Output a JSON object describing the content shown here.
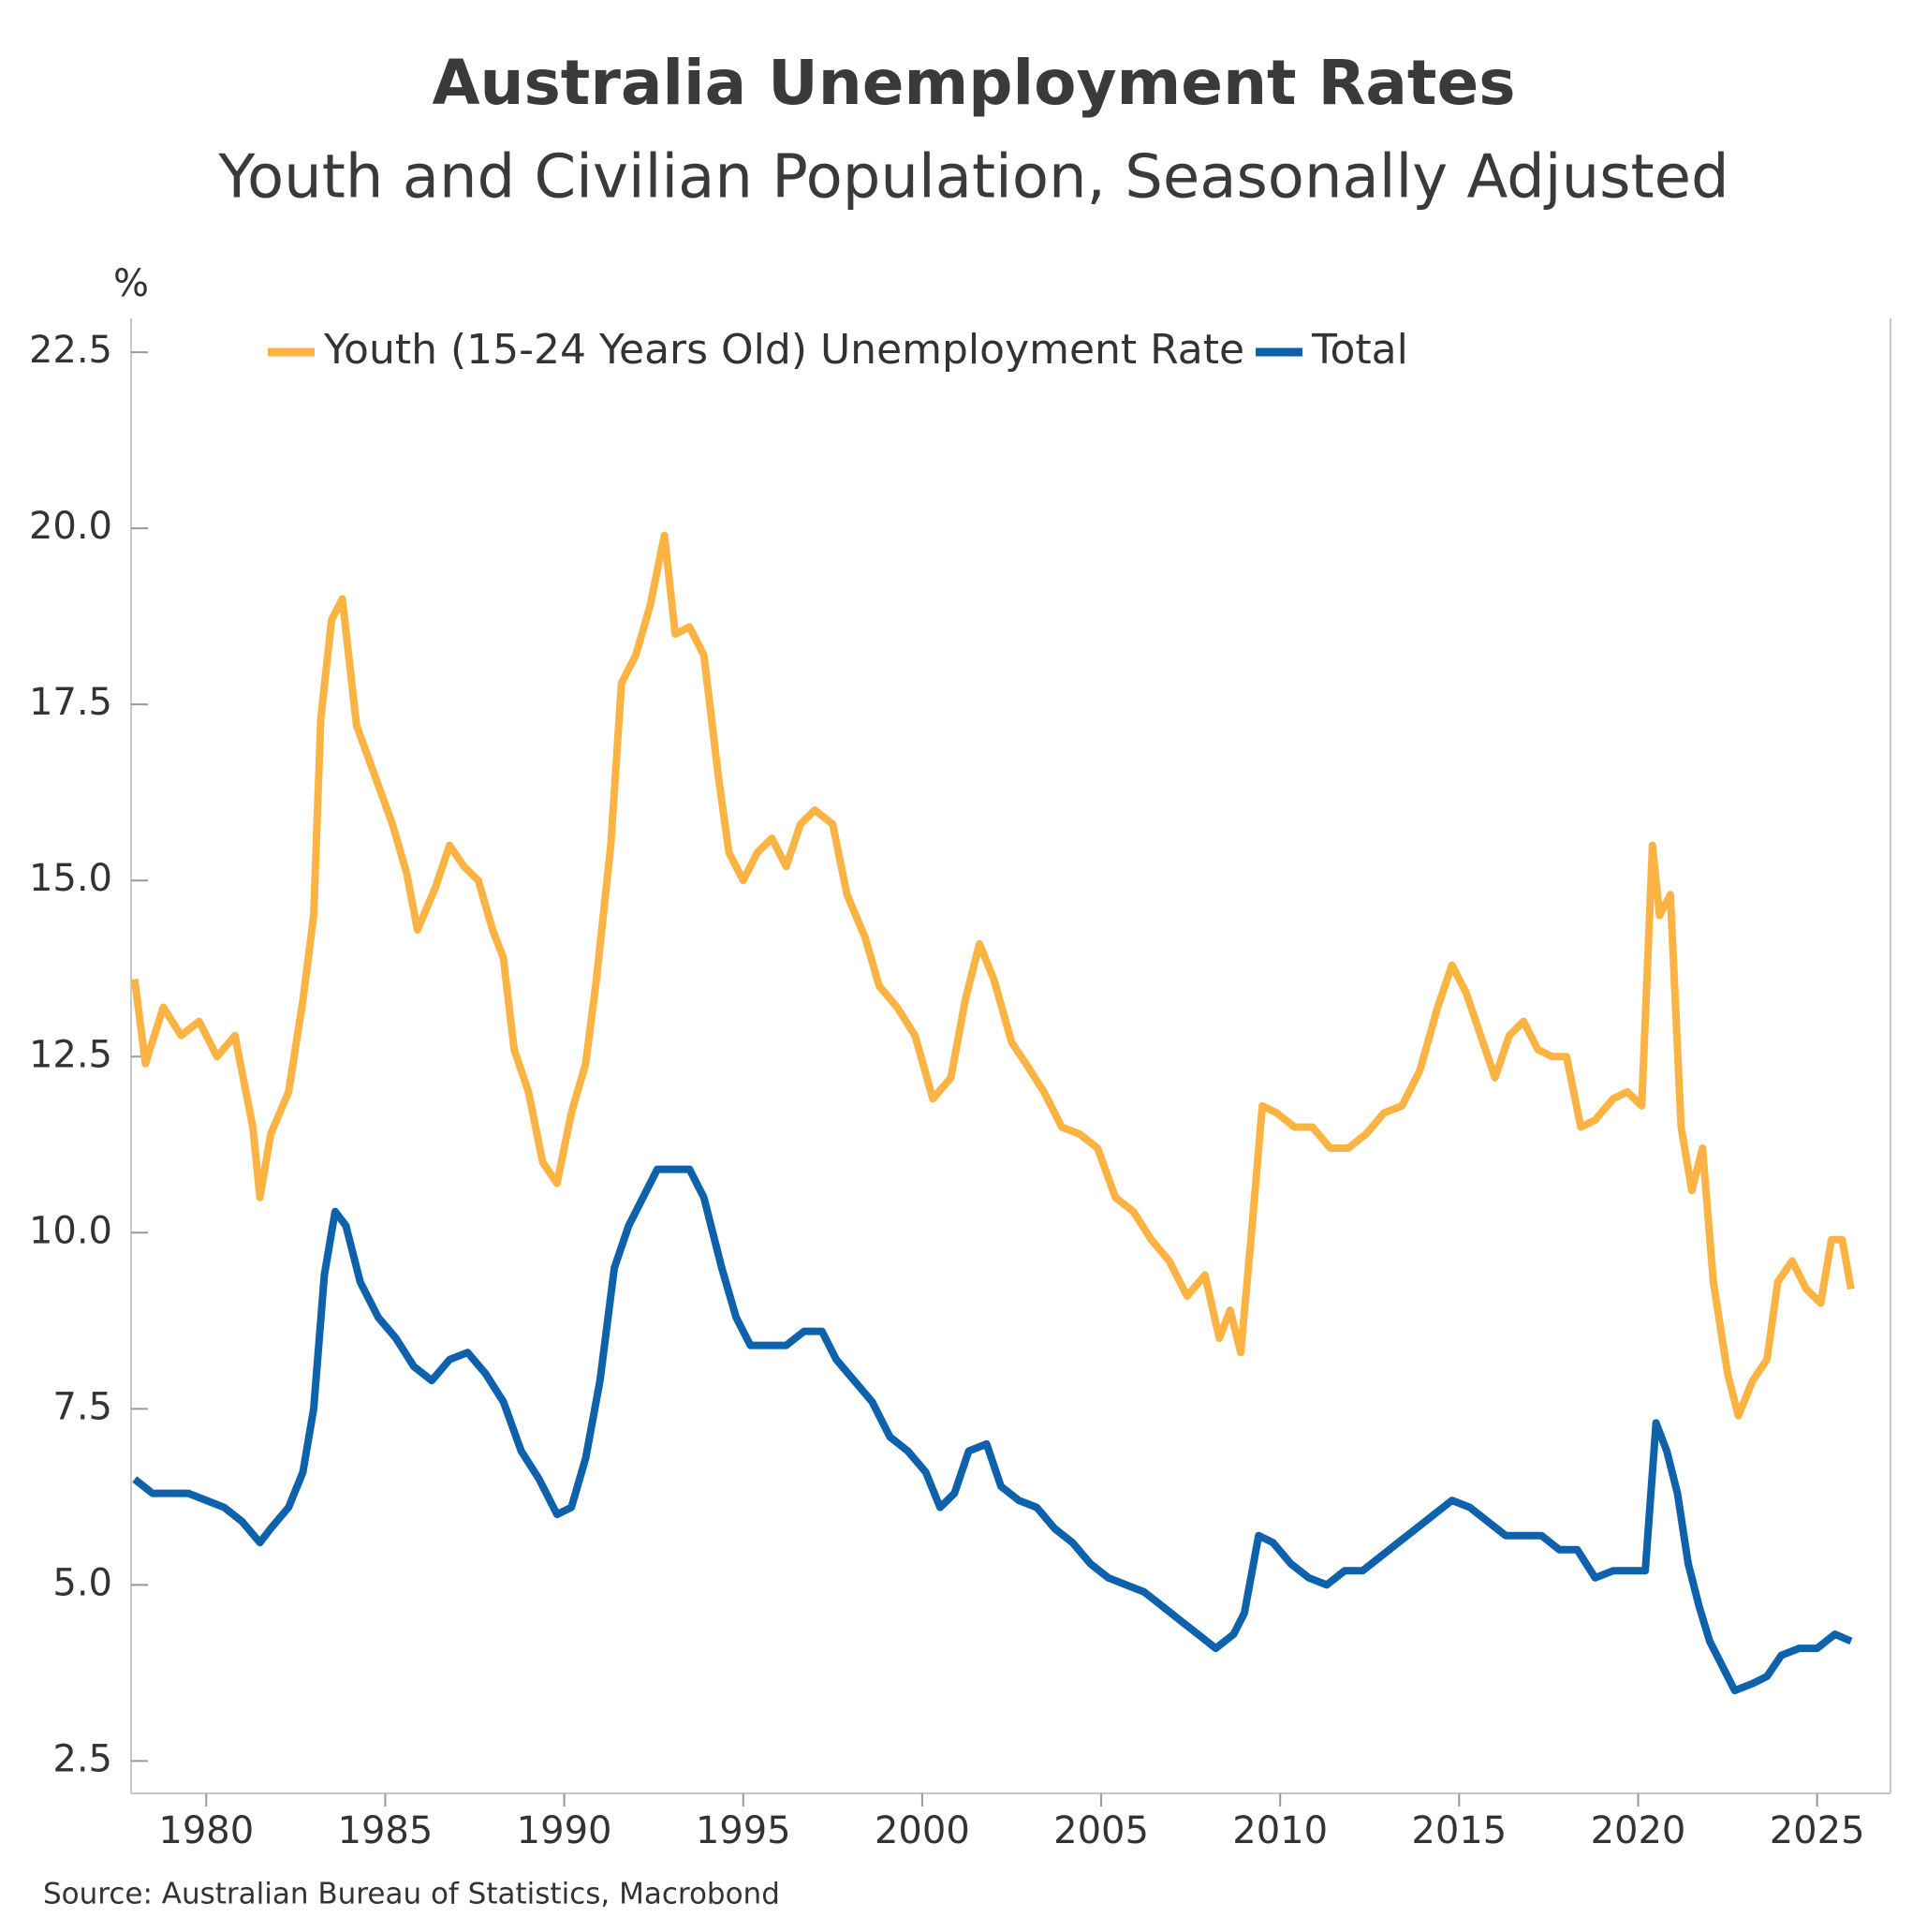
{
  "chart_data": {
    "type": "line",
    "title": "Australia Unemployment Rates",
    "subtitle": "Youth and Civilian Population, Seasonally Adjusted",
    "y_unit": "%",
    "source": "Source: Australian Bureau of Statistics, Macrobond",
    "xlim": [
      1977.9,
      2027.05
    ],
    "xticks": [
      1980,
      1985,
      1990,
      1995,
      2000,
      2005,
      2010,
      2015,
      2020,
      2025
    ],
    "ylim": [
      2.04,
      22.98
    ],
    "yticks": [
      2.5,
      {
        "value": 5,
        "label": "5.0"
      },
      7.5,
      {
        "value": 10,
        "label": "10.0"
      },
      12.5,
      {
        "value": 15,
        "label": "15.0"
      },
      17.5,
      {
        "value": 20,
        "label": "20.0"
      },
      22.5
    ],
    "grid": false,
    "legend": "top",
    "series": [
      {
        "name": "Youth (15-24 Years Old) Unemployment Rate",
        "color": "#fbb443",
        "x": [
          1978.0,
          1978.3,
          1978.8,
          1979.3,
          1979.8,
          1980.3,
          1980.8,
          1981.3,
          1981.5,
          1981.8,
          1982.3,
          1982.7,
          1983.0,
          1983.2,
          1983.5,
          1983.8,
          1984.2,
          1984.7,
          1985.2,
          1985.6,
          1985.9,
          1986.4,
          1986.8,
          1987.2,
          1987.6,
          1988.0,
          1988.3,
          1988.6,
          1989.0,
          1989.4,
          1989.8,
          1990.2,
          1990.6,
          1990.9,
          1991.3,
          1991.6,
          1992.0,
          1992.4,
          1992.8,
          1993.1,
          1993.5,
          1993.9,
          1994.3,
          1994.6,
          1995.0,
          1995.4,
          1995.8,
          1996.2,
          1996.6,
          1997.0,
          1997.5,
          1997.9,
          1998.4,
          1998.8,
          1999.3,
          1999.8,
          2000.3,
          2000.8,
          2001.2,
          2001.6,
          2002.0,
          2002.5,
          2002.9,
          2003.4,
          2003.9,
          2004.4,
          2004.9,
          2005.4,
          2005.9,
          2006.4,
          2006.9,
          2007.4,
          2007.9,
          2008.3,
          2008.6,
          2008.9,
          2009.2,
          2009.5,
          2009.9,
          2010.4,
          2010.9,
          2011.4,
          2011.9,
          2012.4,
          2012.9,
          2013.4,
          2013.9,
          2014.4,
          2014.8,
          2015.2,
          2015.6,
          2016.0,
          2016.4,
          2016.8,
          2017.2,
          2017.6,
          2018.0,
          2018.4,
          2018.8,
          2019.3,
          2019.7,
          2020.1,
          2020.4,
          2020.6,
          2020.9,
          2021.2,
          2021.5,
          2021.8,
          2022.1,
          2022.5,
          2022.8,
          2023.2,
          2023.6,
          2023.9,
          2024.3,
          2024.7,
          2025.1,
          2025.4,
          2025.7,
          2025.95
        ],
        "values": [
          13.6,
          12.4,
          13.2,
          12.8,
          13.0,
          12.5,
          12.8,
          11.5,
          10.5,
          11.4,
          12.0,
          13.3,
          14.5,
          17.3,
          18.7,
          19.0,
          17.2,
          16.5,
          15.8,
          15.1,
          14.3,
          14.9,
          15.5,
          15.2,
          15.0,
          14.3,
          13.9,
          12.6,
          12.0,
          11.0,
          10.7,
          11.7,
          12.4,
          13.6,
          15.5,
          17.8,
          18.2,
          18.9,
          19.9,
          18.5,
          18.6,
          18.2,
          16.5,
          15.4,
          15.0,
          15.4,
          15.6,
          15.2,
          15.8,
          16.0,
          15.8,
          14.8,
          14.2,
          13.5,
          13.2,
          12.8,
          11.9,
          12.2,
          13.3,
          14.1,
          13.6,
          12.7,
          12.4,
          12.0,
          11.5,
          11.4,
          11.2,
          10.5,
          10.3,
          9.9,
          9.6,
          9.1,
          9.4,
          8.5,
          8.9,
          8.3,
          10.0,
          11.8,
          11.7,
          11.5,
          11.5,
          11.2,
          11.2,
          11.4,
          11.7,
          11.8,
          12.3,
          13.2,
          13.8,
          13.4,
          12.8,
          12.2,
          12.8,
          13.0,
          12.6,
          12.5,
          12.5,
          11.5,
          11.6,
          11.9,
          12.0,
          11.8,
          15.5,
          14.5,
          14.8,
          11.5,
          10.6,
          11.2,
          9.3,
          8.0,
          7.4,
          7.9,
          8.2,
          9.3,
          9.6,
          9.2,
          9.0,
          9.9,
          9.9,
          9.2
        ]
      },
      {
        "name": "Total",
        "color": "#0d62ab",
        "x": [
          1978.0,
          1978.5,
          1979.0,
          1979.5,
          1980.0,
          1980.5,
          1981.0,
          1981.5,
          1981.8,
          1982.3,
          1982.7,
          1983.0,
          1983.3,
          1983.6,
          1983.9,
          1984.3,
          1984.8,
          1985.3,
          1985.8,
          1986.3,
          1986.8,
          1987.3,
          1987.8,
          1988.3,
          1988.8,
          1989.3,
          1989.8,
          1990.2,
          1990.6,
          1991.0,
          1991.4,
          1991.8,
          1992.2,
          1992.6,
          1993.0,
          1993.5,
          1993.9,
          1994.4,
          1994.8,
          1995.2,
          1995.7,
          1996.2,
          1996.7,
          1997.2,
          1997.6,
          1998.1,
          1998.6,
          1999.1,
          1999.6,
          2000.1,
          2000.5,
          2000.9,
          2001.3,
          2001.8,
          2002.2,
          2002.7,
          2003.2,
          2003.7,
          2004.2,
          2004.7,
          2005.2,
          2005.7,
          2006.2,
          2006.7,
          2007.2,
          2007.7,
          2008.2,
          2008.7,
          2009.0,
          2009.4,
          2009.8,
          2010.3,
          2010.8,
          2011.3,
          2011.8,
          2012.3,
          2012.8,
          2013.3,
          2013.8,
          2014.3,
          2014.8,
          2015.3,
          2015.8,
          2016.3,
          2016.8,
          2017.3,
          2017.8,
          2018.3,
          2018.8,
          2019.3,
          2019.8,
          2020.2,
          2020.5,
          2020.8,
          2021.1,
          2021.4,
          2021.7,
          2022.0,
          2022.3,
          2022.7,
          2023.2,
          2023.6,
          2024.0,
          2024.5,
          2025.0,
          2025.5,
          2025.95
        ],
        "values": [
          6.5,
          6.3,
          6.3,
          6.3,
          6.2,
          6.1,
          5.9,
          5.6,
          5.8,
          6.1,
          6.6,
          7.5,
          9.4,
          10.3,
          10.1,
          9.3,
          8.8,
          8.5,
          8.1,
          7.9,
          8.2,
          8.3,
          8.0,
          7.6,
          6.9,
          6.5,
          6.0,
          6.1,
          6.8,
          7.9,
          9.5,
          10.1,
          10.5,
          10.9,
          10.9,
          10.9,
          10.5,
          9.5,
          8.8,
          8.4,
          8.4,
          8.4,
          8.6,
          8.6,
          8.2,
          7.9,
          7.6,
          7.1,
          6.9,
          6.6,
          6.1,
          6.3,
          6.9,
          7.0,
          6.4,
          6.2,
          6.1,
          5.8,
          5.6,
          5.3,
          5.1,
          5.0,
          4.9,
          4.7,
          4.5,
          4.3,
          4.1,
          4.3,
          4.6,
          5.7,
          5.6,
          5.3,
          5.1,
          5.0,
          5.2,
          5.2,
          5.4,
          5.6,
          5.8,
          6.0,
          6.2,
          6.1,
          5.9,
          5.7,
          5.7,
          5.7,
          5.5,
          5.5,
          5.1,
          5.2,
          5.2,
          5.2,
          7.3,
          6.9,
          6.3,
          5.3,
          4.7,
          4.2,
          3.9,
          3.5,
          3.6,
          3.7,
          4.0,
          4.1,
          4.1,
          4.3,
          4.2
        ]
      }
    ]
  }
}
